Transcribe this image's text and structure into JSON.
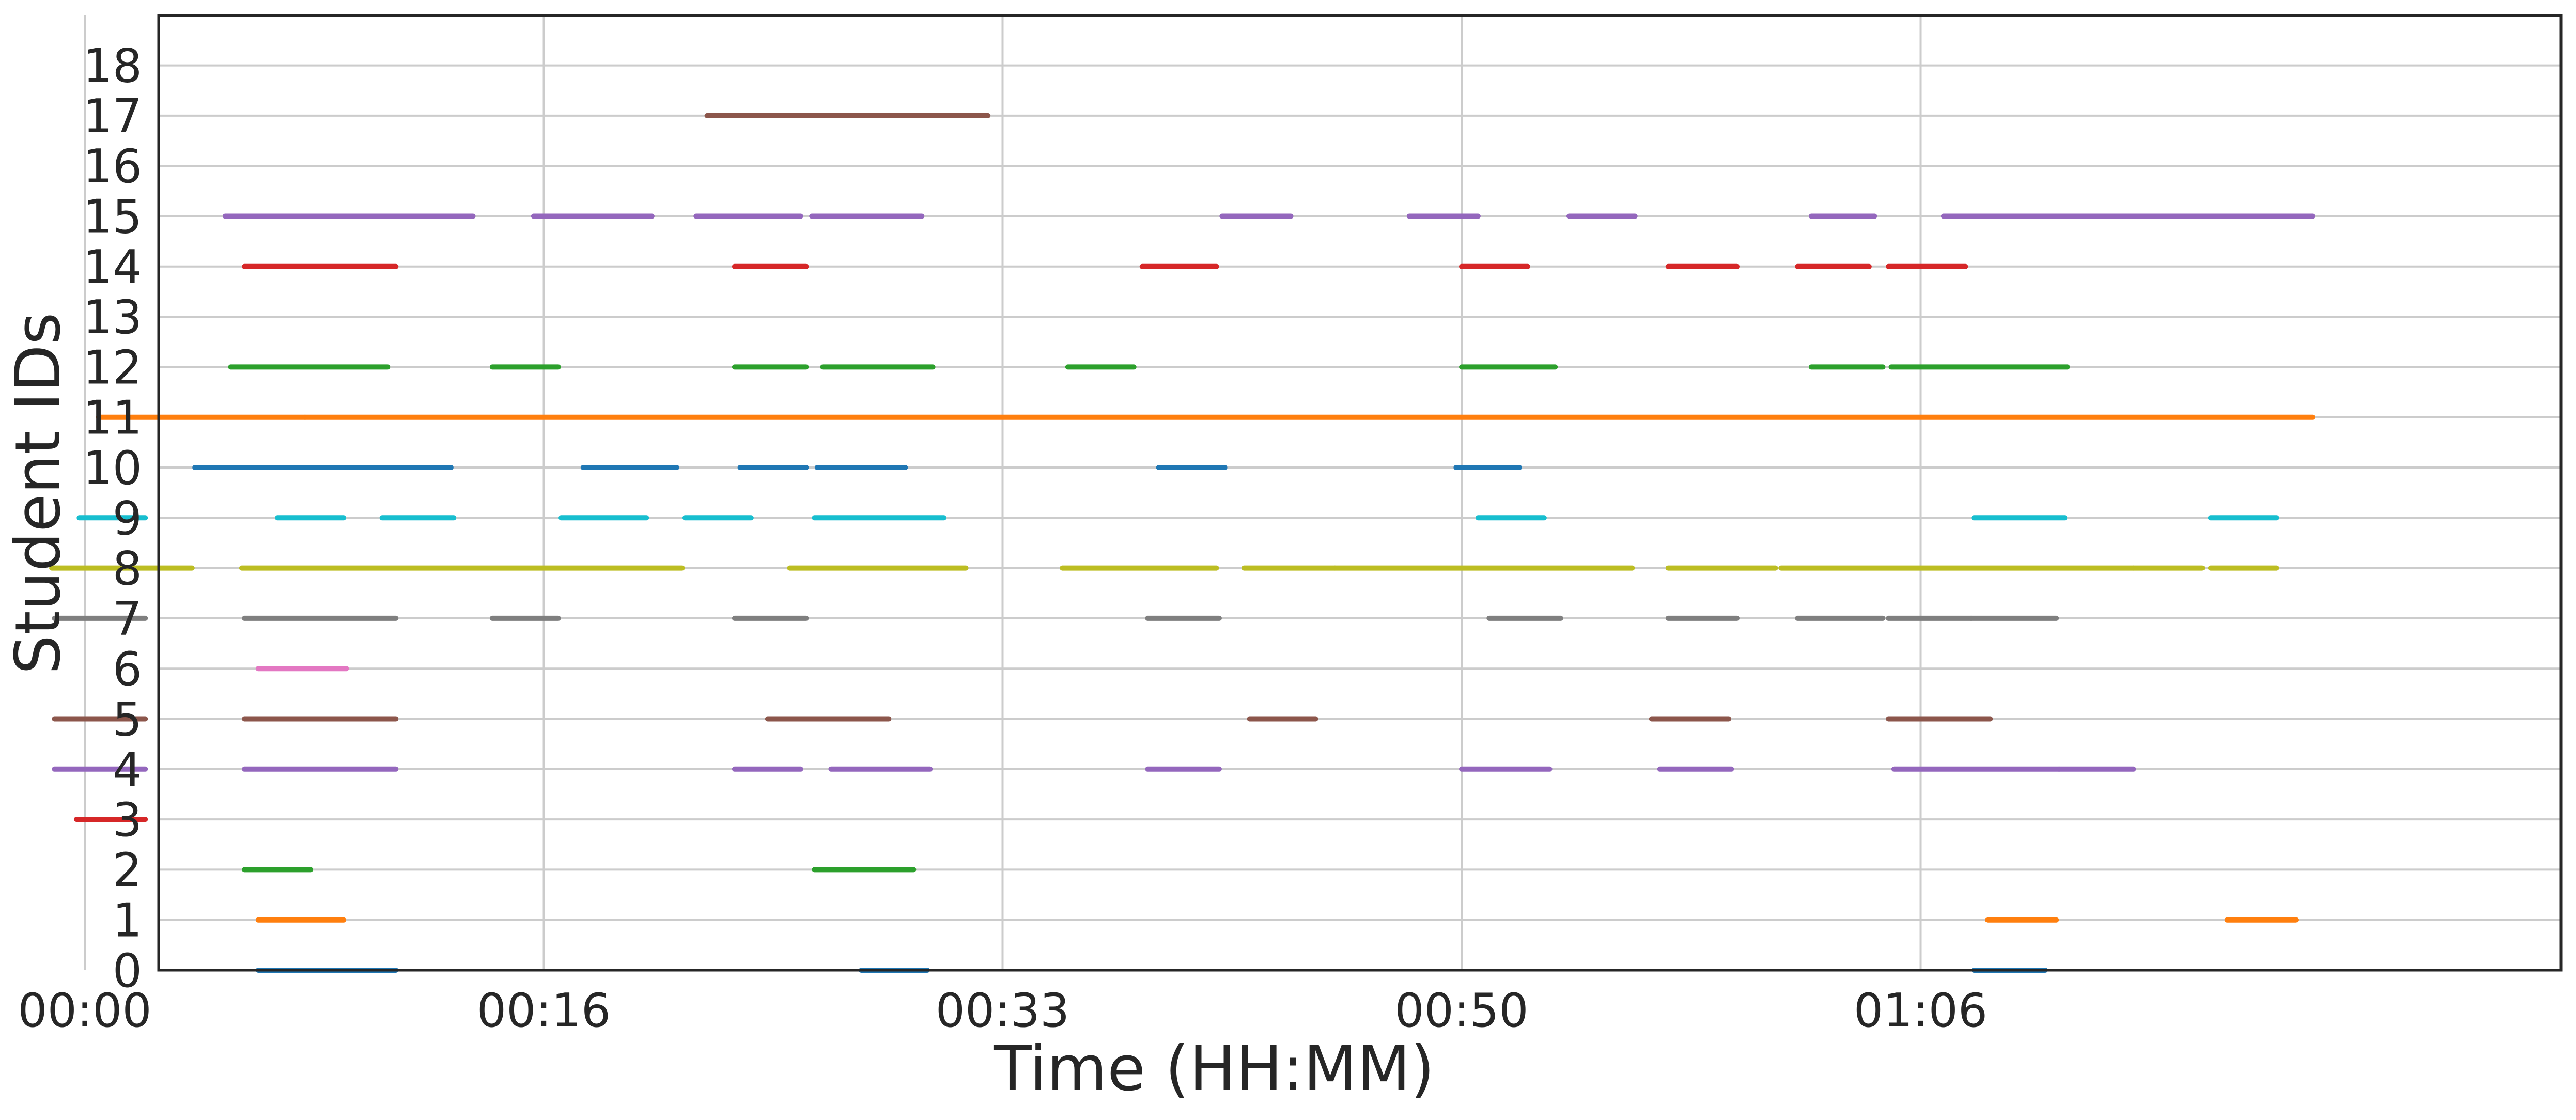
{
  "chart_data": {
    "type": "timeline",
    "title": "",
    "xlabel": "Time (HH:MM)",
    "ylabel": "Student IDs",
    "x_unit": "minutes",
    "xlim": [
      -4,
      83.3
    ],
    "ylim": [
      0,
      19
    ],
    "x_ticks": [
      {
        "value": 0,
        "label": "00:00"
      },
      {
        "value": 16.67,
        "label": "00:16"
      },
      {
        "value": 33.33,
        "label": "00:33"
      },
      {
        "value": 50,
        "label": "00:50"
      },
      {
        "value": 66.67,
        "label": "01:06"
      }
    ],
    "y_ticks": [
      0,
      1,
      2,
      3,
      4,
      5,
      6,
      7,
      8,
      9,
      10,
      11,
      12,
      13,
      14,
      15,
      16,
      17,
      18
    ],
    "grid": true,
    "legend": "none",
    "colors": {
      "0": "#1f77b4",
      "1": "#ff7f0e",
      "2": "#2ca02c",
      "3": "#d62728",
      "4": "#9467bd",
      "5": "#8c564b",
      "6": "#e377c2",
      "7": "#7f7f7f",
      "8": "#bcbd22",
      "9": "#17becf",
      "10": "#1f77b4",
      "11": "#ff7f0e",
      "12": "#2ca02c",
      "14": "#d62728",
      "15": "#9467bd",
      "17": "#8c564b"
    },
    "series": [
      {
        "student": 0,
        "segments": [
          [
            6.3,
            11.3
          ],
          [
            28.2,
            30.6
          ],
          [
            68.6,
            71.2
          ]
        ]
      },
      {
        "student": 1,
        "segments": [
          [
            6.3,
            9.4
          ],
          [
            69.1,
            71.6
          ],
          [
            77.8,
            80.3
          ]
        ]
      },
      {
        "student": 2,
        "segments": [
          [
            5.8,
            8.2
          ],
          [
            26.5,
            30.1
          ]
        ]
      },
      {
        "student": 3,
        "segments": [
          [
            -0.3,
            2.2
          ]
        ]
      },
      {
        "student": 4,
        "segments": [
          [
            -1.1,
            2.2
          ],
          [
            5.8,
            11.3
          ],
          [
            23.6,
            26.0
          ],
          [
            27.1,
            30.7
          ],
          [
            38.6,
            41.2
          ],
          [
            50.0,
            53.2
          ],
          [
            57.2,
            59.8
          ],
          [
            65.7,
            71.7
          ],
          [
            71.7,
            74.4
          ]
        ]
      },
      {
        "student": 5,
        "segments": [
          [
            -1.1,
            2.2
          ],
          [
            5.8,
            11.3
          ],
          [
            24.8,
            29.2
          ],
          [
            42.3,
            44.7
          ],
          [
            56.9,
            59.7
          ],
          [
            65.5,
            69.2
          ]
        ]
      },
      {
        "student": 6,
        "segments": [
          [
            6.3,
            9.5
          ]
        ]
      },
      {
        "student": 7,
        "segments": [
          [
            -1.1,
            2.2
          ],
          [
            5.8,
            11.3
          ],
          [
            14.8,
            17.2
          ],
          [
            23.6,
            26.2
          ],
          [
            38.6,
            41.2
          ],
          [
            51.0,
            53.6
          ],
          [
            57.5,
            60.0
          ],
          [
            62.2,
            65.3
          ],
          [
            65.5,
            68.5
          ],
          [
            68.5,
            71.6
          ]
        ]
      },
      {
        "student": 8,
        "segments": [
          [
            -1.2,
            3.9
          ],
          [
            5.7,
            21.7
          ],
          [
            25.6,
            32.0
          ],
          [
            35.5,
            41.1
          ],
          [
            42.1,
            45.4
          ],
          [
            45.4,
            56.2
          ],
          [
            57.5,
            61.4
          ],
          [
            61.6,
            74.4
          ],
          [
            74.4,
            76.9
          ],
          [
            77.2,
            79.6
          ]
        ]
      },
      {
        "student": 9,
        "segments": [
          [
            -0.2,
            2.2
          ],
          [
            7.0,
            9.4
          ],
          [
            10.8,
            13.4
          ],
          [
            17.3,
            20.4
          ],
          [
            21.8,
            24.2
          ],
          [
            26.5,
            31.2
          ],
          [
            50.6,
            53.0
          ],
          [
            68.6,
            71.9
          ],
          [
            77.2,
            79.6
          ]
        ]
      },
      {
        "student": 10,
        "segments": [
          [
            4.0,
            13.3
          ],
          [
            18.1,
            21.5
          ],
          [
            23.8,
            26.2
          ],
          [
            26.6,
            29.8
          ],
          [
            39.0,
            41.4
          ],
          [
            49.8,
            52.1
          ]
        ]
      },
      {
        "student": 11,
        "segments": [
          [
            0.5,
            8.0
          ],
          [
            8.0,
            80.9
          ]
        ]
      },
      {
        "student": 12,
        "segments": [
          [
            5.3,
            11.0
          ],
          [
            14.8,
            17.2
          ],
          [
            23.6,
            26.2
          ],
          [
            26.8,
            30.8
          ],
          [
            35.7,
            38.1
          ],
          [
            50.0,
            53.4
          ],
          [
            62.7,
            65.3
          ],
          [
            65.6,
            72.0
          ]
        ]
      },
      {
        "student": 14,
        "segments": [
          [
            5.8,
            11.3
          ],
          [
            23.6,
            26.2
          ],
          [
            38.4,
            41.1
          ],
          [
            50.0,
            52.4
          ],
          [
            57.5,
            60.0
          ],
          [
            62.2,
            64.8
          ],
          [
            65.5,
            68.3
          ]
        ]
      },
      {
        "student": 15,
        "segments": [
          [
            5.1,
            14.1
          ],
          [
            16.3,
            20.6
          ],
          [
            22.2,
            26.0
          ],
          [
            26.4,
            30.4
          ],
          [
            41.3,
            43.8
          ],
          [
            48.1,
            50.6
          ],
          [
            53.9,
            56.3
          ],
          [
            62.7,
            65.0
          ],
          [
            67.5,
            74.3
          ],
          [
            74.3,
            80.9
          ]
        ]
      },
      {
        "student": 17,
        "segments": [
          [
            22.6,
            32.8
          ]
        ]
      }
    ]
  }
}
